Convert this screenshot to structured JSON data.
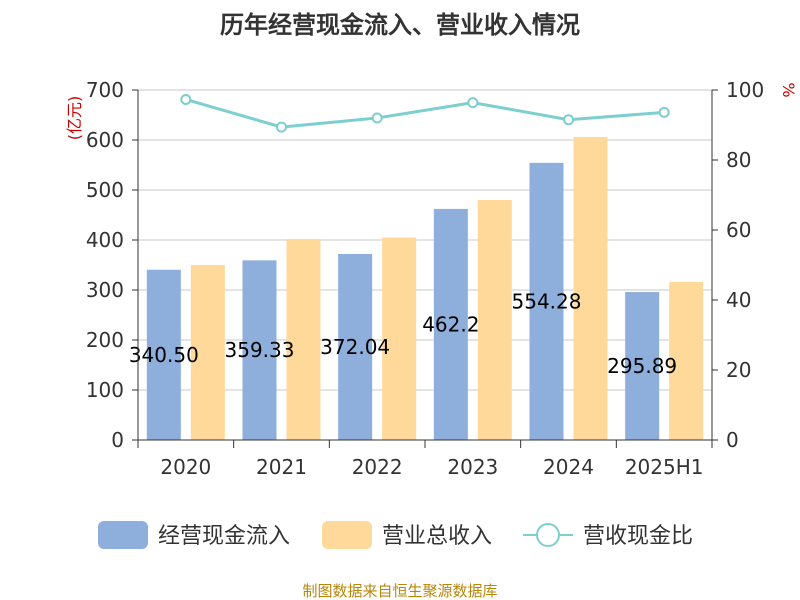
{
  "chart_data": {
    "type": "bar",
    "title": "历年经营现金流入、营业收入情况",
    "categories": [
      "2020",
      "2021",
      "2022",
      "2023",
      "2024",
      "2025H1"
    ],
    "series": [
      {
        "name": "经营现金流入",
        "kind": "bar",
        "axis": "left",
        "color": "#8eaedb",
        "values": [
          340.5,
          359.33,
          372.04,
          462.2,
          554.28,
          295.89
        ],
        "labels": [
          "340.50",
          "359.33",
          "372.04",
          "462.2",
          "554.28",
          "295.89"
        ]
      },
      {
        "name": "营业总收入",
        "kind": "bar",
        "axis": "left",
        "color": "#ffd999",
        "values": [
          350,
          402,
          405,
          480,
          606,
          316
        ]
      },
      {
        "name": "营收现金比",
        "kind": "line",
        "axis": "right",
        "color": "#7dcfcf",
        "values": [
          97.3,
          89.4,
          92.0,
          96.4,
          91.5,
          93.6
        ]
      }
    ],
    "y_left": {
      "unit": "(亿元)",
      "ylim": [
        0,
        700
      ],
      "ticks": [
        "0",
        "100",
        "200",
        "300",
        "400",
        "500",
        "600",
        "700"
      ]
    },
    "y_right": {
      "unit": "%",
      "ylim": [
        0,
        100
      ],
      "ticks": [
        "0",
        "20",
        "40",
        "60",
        "80",
        "100"
      ]
    },
    "grid": true,
    "legend_position": "bottom",
    "source": "制图数据来自恒生聚源数据库"
  }
}
